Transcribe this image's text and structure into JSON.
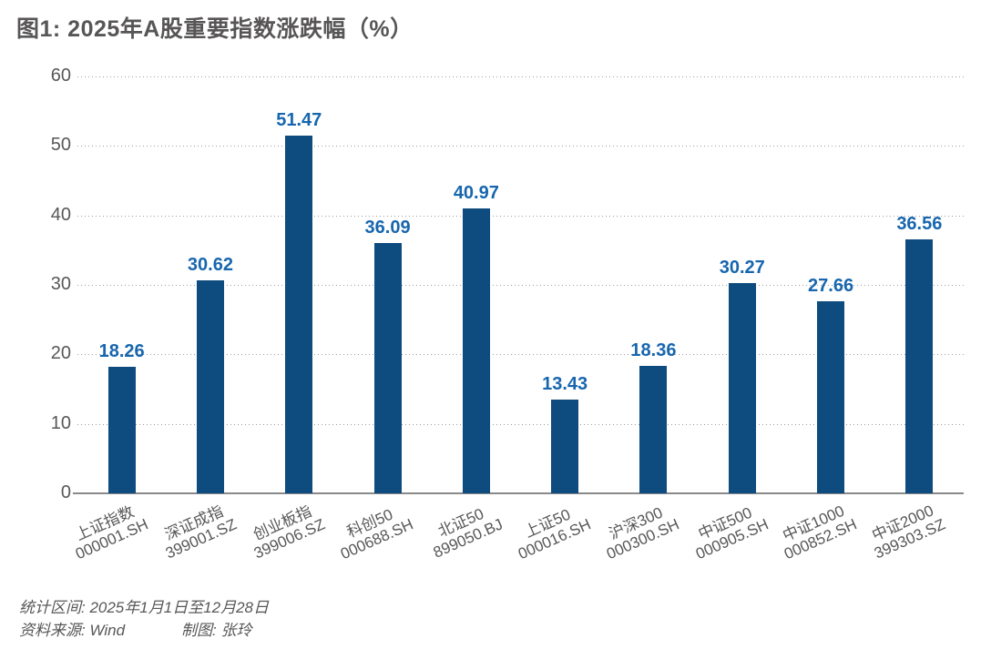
{
  "title": "图1: 2025年A股重要指数涨跌幅（%）",
  "chart_data": {
    "type": "bar",
    "title": "图1: 2025年A股重要指数涨跌幅（%）",
    "categories": [
      "上证指数",
      "深证成指",
      "创业板指",
      "科创50",
      "北证50",
      "上证50",
      "沪深300",
      "中证500",
      "中证1000",
      "中证2000"
    ],
    "codes": [
      "000001.SH",
      "399001.SZ",
      "399006.SZ",
      "000688.SH",
      "899050.BJ",
      "000016.SH",
      "000300.SH",
      "000905.SH",
      "000852.SH",
      "399303.SZ"
    ],
    "values": [
      18.26,
      30.62,
      51.47,
      36.09,
      40.97,
      13.43,
      18.36,
      30.27,
      27.66,
      36.56
    ],
    "value_labels": [
      "18.26",
      "30.62",
      "51.47",
      "36.09",
      "40.97",
      "13.43",
      "18.36",
      "30.27",
      "27.66",
      "36.56"
    ],
    "xlabel": "",
    "ylabel": "",
    "ylim": [
      0,
      60
    ],
    "yticks": [
      0,
      10,
      20,
      30,
      40,
      50,
      60
    ],
    "grid": "horizontal-dotted",
    "legend": "none",
    "bar_color": "#0e4b7e",
    "value_label_color": "#1766ae",
    "axis_text_color": "#595757",
    "grid_color": "#9d9d9d",
    "baseline_color": "#8a8a8a"
  },
  "footer": {
    "period": "统计区间: 2025年1月1日至12月28日",
    "source": "资料来源: Wind",
    "credit": "制图: 张玲"
  }
}
